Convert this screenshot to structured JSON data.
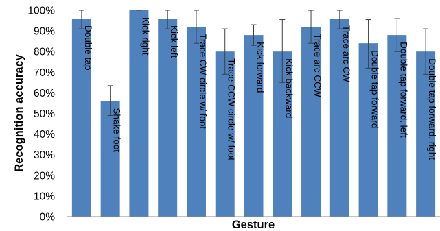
{
  "chart_data": {
    "type": "bar",
    "title": "",
    "xlabel": "Gesture",
    "ylabel": "Recognition accuracy",
    "ylim": [
      0,
      100
    ],
    "yticks": [
      0,
      10,
      20,
      30,
      40,
      50,
      60,
      70,
      80,
      90,
      100
    ],
    "ytick_labels": [
      "0%",
      "10%",
      "20%",
      "30%",
      "40%",
      "50%",
      "60%",
      "70%",
      "80%",
      "90%",
      "100%"
    ],
    "grid": false,
    "legend": "none",
    "bar_color": "#4f81bd",
    "error_bar_color": "#404040",
    "categories": [
      "Double tap",
      "Shake foot",
      "Kick right",
      "Kick left",
      "Trace CW circle w/ foot",
      "Trace CCW circle w/ foot",
      "Kick forward",
      "Kick backward",
      "Trace arc CCW",
      "Trace arc CW",
      "Double tap forward",
      "Double tap forward, left",
      "Double tap forward, right"
    ],
    "values": [
      96,
      56,
      100,
      96,
      92,
      80,
      88,
      80,
      92,
      96,
      84,
      88,
      80
    ],
    "error_low": [
      91,
      49,
      100,
      91,
      84,
      69,
      83,
      65,
      84,
      91,
      72,
      80,
      69
    ],
    "error_high": [
      100,
      63.5,
      100,
      100,
      100,
      91,
      93,
      95.5,
      100,
      100,
      95.5,
      96,
      91
    ]
  }
}
